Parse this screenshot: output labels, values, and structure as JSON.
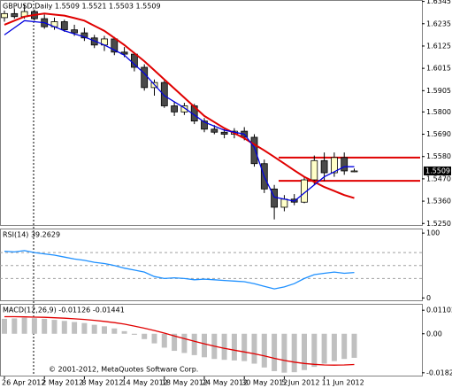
{
  "chart_data": [
    {
      "type": "candlestick",
      "title": "GBPUSD,Daily 1.5509 1.5521 1.5503 1.5509",
      "open": [
        1.6265,
        1.6285,
        1.627,
        1.6295,
        1.626,
        1.622,
        1.6245,
        1.6205,
        1.619,
        1.6165,
        1.613,
        1.616,
        1.6095,
        1.6085,
        1.602,
        1.592,
        1.5945,
        1.583,
        1.58,
        1.583,
        1.5755,
        1.5715,
        1.57,
        1.569,
        1.5705,
        1.5675,
        1.5545,
        1.542,
        1.533,
        1.537,
        1.5355,
        1.5465,
        1.556,
        1.55,
        1.5575,
        1.5509
      ],
      "high": [
        1.63,
        1.631,
        1.633,
        1.6305,
        1.628,
        1.6265,
        1.6255,
        1.623,
        1.6215,
        1.618,
        1.6175,
        1.617,
        1.612,
        1.6095,
        1.6035,
        1.596,
        1.5955,
        1.585,
        1.5845,
        1.584,
        1.577,
        1.5735,
        1.5715,
        1.572,
        1.5725,
        1.569,
        1.5565,
        1.544,
        1.539,
        1.5395,
        1.548,
        1.5585,
        1.56,
        1.56,
        1.56,
        1.5521
      ],
      "low": [
        1.6245,
        1.626,
        1.626,
        1.625,
        1.621,
        1.6205,
        1.6195,
        1.6175,
        1.615,
        1.6115,
        1.61,
        1.608,
        1.607,
        1.6,
        1.5905,
        1.588,
        1.582,
        1.578,
        1.5785,
        1.574,
        1.57,
        1.569,
        1.567,
        1.567,
        1.566,
        1.553,
        1.54,
        1.527,
        1.531,
        1.534,
        1.535,
        1.544,
        1.546,
        1.548,
        1.549,
        1.5503
      ],
      "close": [
        1.6285,
        1.627,
        1.6295,
        1.626,
        1.622,
        1.6245,
        1.6205,
        1.619,
        1.6165,
        1.613,
        1.616,
        1.6095,
        1.6085,
        1.602,
        1.592,
        1.5945,
        1.583,
        1.58,
        1.583,
        1.5755,
        1.5715,
        1.57,
        1.569,
        1.5705,
        1.5675,
        1.5545,
        1.542,
        1.533,
        1.537,
        1.5355,
        1.5465,
        1.556,
        1.55,
        1.5575,
        1.5509,
        1.5509
      ],
      "bull_color": "#ffffc8",
      "bear_color": "#4a4a4a",
      "series": [
        {
          "color": "#e00000",
          "values": [
            1.623,
            1.625,
            1.627,
            1.6278,
            1.6285,
            1.628,
            1.6275,
            1.6263,
            1.625,
            1.6225,
            1.62,
            1.6165,
            1.613,
            1.609,
            1.605,
            1.6005,
            1.596,
            1.5915,
            1.587,
            1.5825,
            1.578,
            1.575,
            1.572,
            1.5695,
            1.567,
            1.564,
            1.561,
            1.5578,
            1.5545,
            1.5512,
            1.548,
            1.5455,
            1.543,
            1.541,
            1.539,
            1.5375
          ]
        },
        {
          "color": "#0000e0",
          "values": [
            1.618,
            1.6215,
            1.625,
            1.6245,
            1.624,
            1.622,
            1.62,
            1.6185,
            1.617,
            1.615,
            1.613,
            1.6105,
            1.608,
            1.6035,
            1.599,
            1.5935,
            1.588,
            1.585,
            1.582,
            1.5785,
            1.575,
            1.573,
            1.571,
            1.57,
            1.569,
            1.5625,
            1.548,
            1.538,
            1.537,
            1.536,
            1.54,
            1.544,
            1.548,
            1.5505,
            1.553,
            1.553
          ]
        }
      ],
      "levels": [
        1.5575,
        1.546
      ],
      "level_color": "#e00000",
      "last_price": 1.5509,
      "ylim": [
        1.5238,
        1.6352
      ],
      "yticks": [
        1.6345,
        1.6235,
        1.6125,
        1.6015,
        1.5905,
        {
          "value": 1.58,
          "label": "1.5800"
        },
        {
          "value": 1.569,
          "label": "1.5690"
        },
        {
          "value": 1.558,
          "label": "1.5580"
        },
        {
          "value": 1.547,
          "label": "1.5470"
        },
        {
          "value": 1.536,
          "label": "1.5360"
        },
        {
          "value": 1.525,
          "label": "1.5250"
        }
      ]
    },
    {
      "type": "line",
      "title": "RSI(14) 39.2629",
      "series": [
        {
          "color": "#1e90ff",
          "values": [
            72,
            71,
            73,
            70,
            68,
            66,
            63,
            60,
            58,
            55,
            53,
            50,
            46,
            43,
            40,
            33,
            30,
            31,
            30,
            28,
            29,
            28,
            27,
            26,
            25,
            22,
            18,
            14,
            17,
            22,
            30,
            36,
            38,
            40,
            38,
            39.2629
          ]
        }
      ],
      "levels": [
        70,
        50,
        30
      ],
      "level_color": "#a0a0a0",
      "ylim": [
        -5,
        107
      ],
      "yticks": [
        100,
        0
      ]
    },
    {
      "type": "macd",
      "title": "MACD(12,26,9) -0.01126 -0.01441",
      "categories": [
        "26 Apr 2012",
        null,
        null,
        null,
        "2 May 2012",
        null,
        null,
        null,
        "8 May 2012",
        null,
        null,
        null,
        "14 May 2012",
        null,
        null,
        null,
        "18 May 2012",
        null,
        null,
        null,
        "24 May 2012",
        null,
        null,
        null,
        "30 May 2012",
        null,
        null,
        null,
        "5 Jun 2012",
        null,
        null,
        null,
        "11 Jun 2012",
        null,
        null,
        null
      ],
      "values": [
        0.007,
        0.0072,
        0.0075,
        0.0073,
        0.007,
        0.0065,
        0.006,
        0.0055,
        0.005,
        0.0042,
        0.0035,
        0.0025,
        0.0012,
        -0.0005,
        -0.0025,
        -0.0045,
        -0.0065,
        -0.008,
        -0.009,
        -0.01,
        -0.011,
        -0.0118,
        -0.0122,
        -0.0125,
        -0.0128,
        -0.014,
        -0.0158,
        -0.0175,
        -0.0182,
        -0.018,
        -0.017,
        -0.0155,
        -0.014,
        -0.0128,
        -0.0118,
        -0.01126
      ],
      "color": "#c0c0c0",
      "series": [
        {
          "color": "#e00000",
          "values": [
            0.008,
            0.008,
            0.0079,
            0.0078,
            0.0077,
            0.0075,
            0.0073,
            0.007,
            0.0067,
            0.0063,
            0.0058,
            0.0052,
            0.0045,
            0.0036,
            0.0026,
            0.0015,
            0.0003,
            -0.001,
            -0.0023,
            -0.0035,
            -0.0047,
            -0.0058,
            -0.0068,
            -0.0077,
            -0.0085,
            -0.0094,
            -0.0104,
            -0.0115,
            -0.0125,
            -0.0133,
            -0.0139,
            -0.0143,
            -0.0146,
            -0.0147,
            -0.0146,
            -0.01441
          ]
        }
      ],
      "annotation": "© 2001-2012, MetaQuotes Software Corp.",
      "ylim": [
        -0.02,
        0.014
      ],
      "yticks": [
        0.01102,
        {
          "value": 0,
          "label": "0.00"
        },
        -0.01827
      ]
    }
  ]
}
